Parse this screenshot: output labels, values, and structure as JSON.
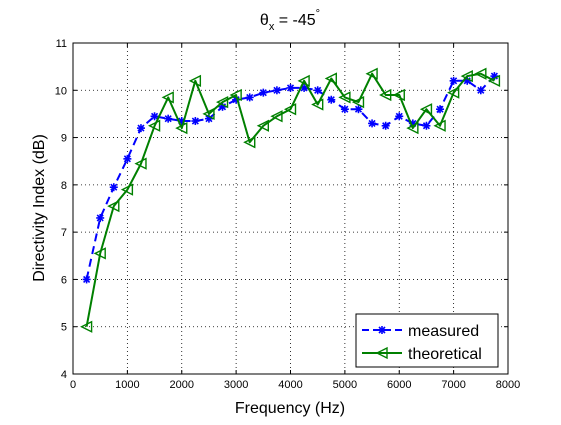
{
  "chart_data": {
    "type": "line",
    "title_main": "θ",
    "title_sub": "x",
    "title_rest": " = -45",
    "title_sup": "°",
    "xlabel": "Frequency (Hz)",
    "ylabel": "Directivity Index (dB)",
    "xlim": [
      0,
      8000
    ],
    "ylim": [
      4,
      11
    ],
    "xticks": [
      0,
      1000,
      2000,
      3000,
      4000,
      5000,
      6000,
      7000,
      8000
    ],
    "yticks": [
      4,
      5,
      6,
      7,
      8,
      9,
      10,
      11
    ],
    "grid": true,
    "legend_position": "bottom-right",
    "series": [
      {
        "name": "measured",
        "color": "#0000ff",
        "line_style": "dashed",
        "marker": "star",
        "x": [
          250,
          500,
          750,
          1000,
          1250,
          1500,
          1750,
          2000,
          2250,
          2500,
          2750,
          3000,
          3250,
          3500,
          3750,
          4000,
          4250,
          4500,
          4750,
          5000,
          5250,
          5500,
          5750,
          6000,
          6250,
          6500,
          6750,
          7000,
          7250,
          7500,
          7750
        ],
        "y": [
          6.0,
          7.3,
          7.95,
          8.55,
          9.2,
          9.45,
          9.4,
          9.35,
          9.35,
          9.4,
          9.65,
          9.8,
          9.85,
          9.95,
          10.0,
          10.05,
          10.05,
          10.0,
          9.8,
          9.6,
          9.6,
          9.3,
          9.25,
          9.45,
          9.3,
          9.25,
          9.6,
          10.2,
          10.2,
          10.0,
          10.3
        ]
      },
      {
        "name": "theoretical",
        "color": "#008000",
        "line_style": "solid",
        "marker": "triangle-left",
        "x": [
          250,
          500,
          750,
          1000,
          1250,
          1500,
          1750,
          2000,
          2250,
          2500,
          2750,
          3000,
          3250,
          3500,
          3750,
          4000,
          4250,
          4500,
          4750,
          5000,
          5250,
          5500,
          5750,
          6000,
          6250,
          6500,
          6750,
          7000,
          7250,
          7500,
          7750
        ],
        "y": [
          5.0,
          6.55,
          7.55,
          7.9,
          8.45,
          9.25,
          9.85,
          9.2,
          10.2,
          9.5,
          9.75,
          9.9,
          8.9,
          9.25,
          9.45,
          9.6,
          10.2,
          9.7,
          10.25,
          9.85,
          9.75,
          10.35,
          9.9,
          9.9,
          9.2,
          9.6,
          9.25,
          9.95,
          10.3,
          10.35,
          10.2
        ]
      }
    ]
  }
}
